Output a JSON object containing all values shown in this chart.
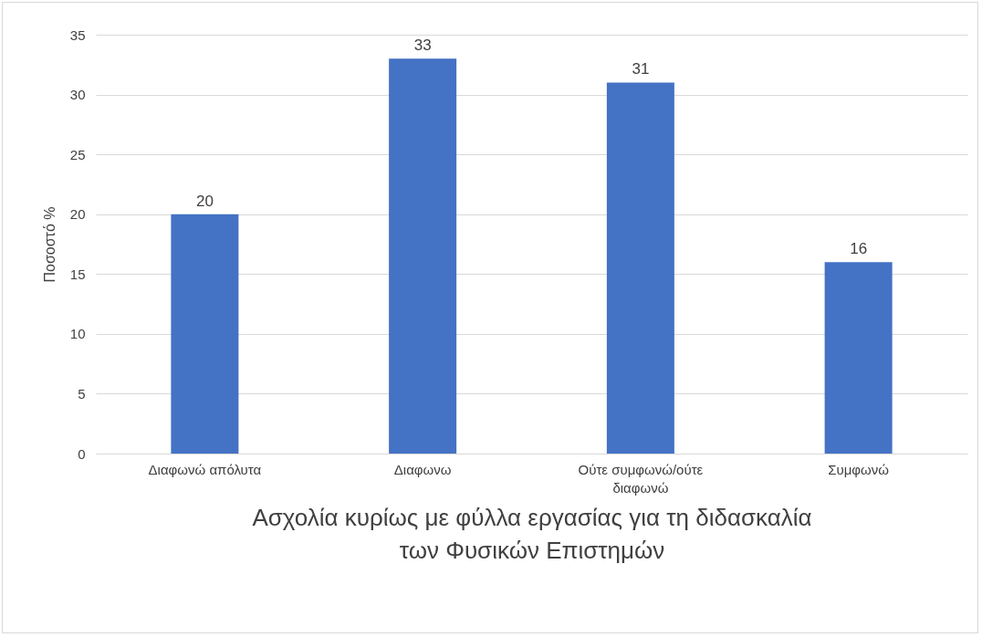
{
  "chart_data": {
    "type": "bar",
    "xlabel": "Ασχολία κυρίως με φύλλα εργασίας για τη διδασκαλία των Φυσικών Επιστημών",
    "ylabel": "Ποσοστό %",
    "categories": [
      "Διαφωνώ απόλυτα",
      "Διαφωνω",
      "Ούτε συμφωνώ/ούτε διαφωνώ",
      "Συμφωνώ"
    ],
    "values": [
      20,
      33,
      31,
      16
    ],
    "color": "#4472c4",
    "ylim": [
      0,
      35
    ],
    "yticks": [
      0,
      5,
      10,
      15,
      20,
      25,
      30,
      35
    ],
    "grid": "y",
    "data_labels": true
  }
}
